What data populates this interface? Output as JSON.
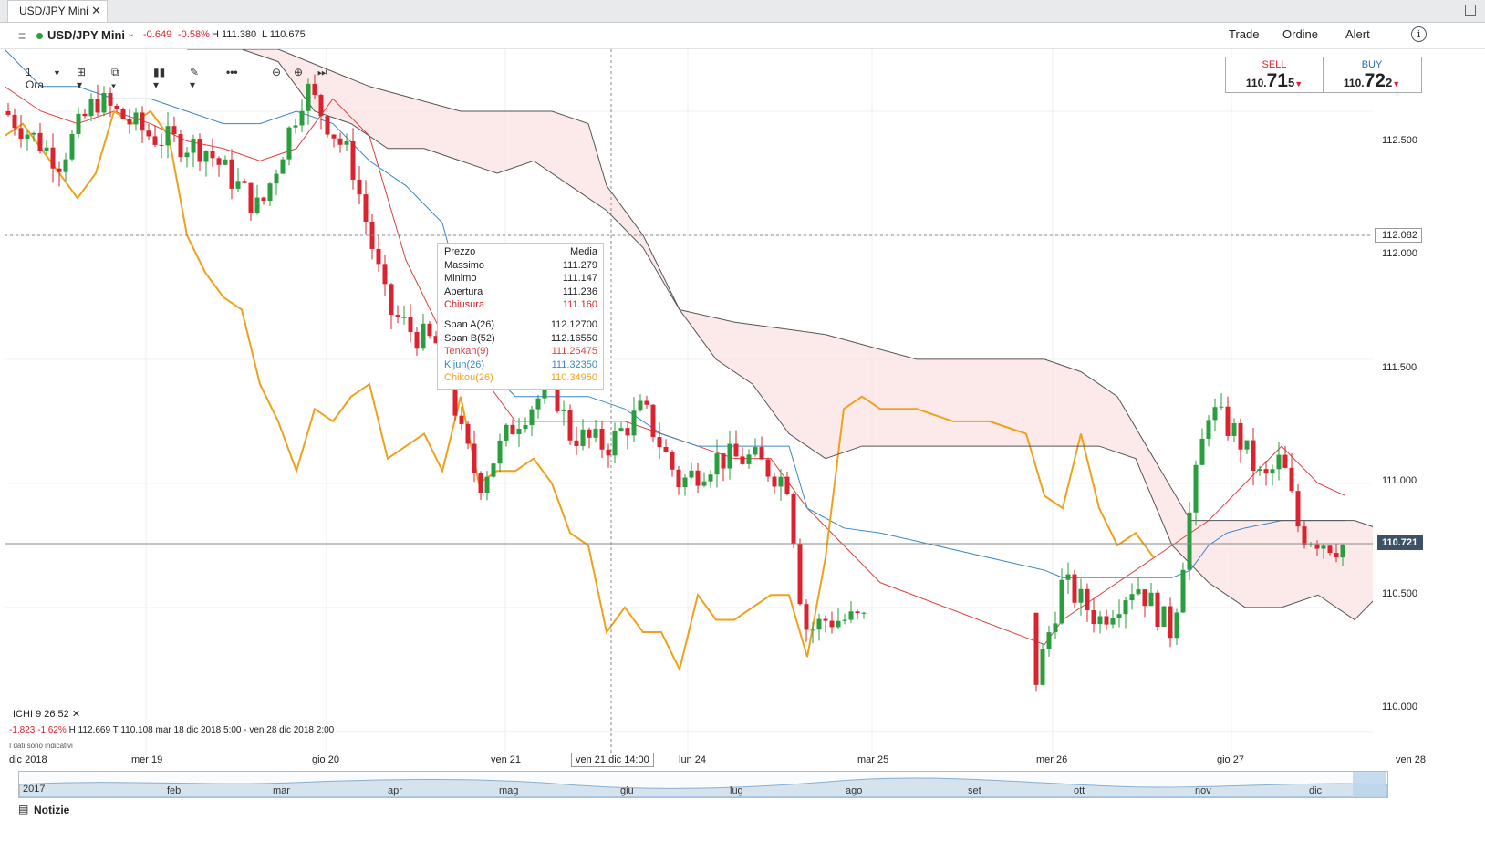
{
  "tab": {
    "title": "USD/JPY Mini",
    "close": "✕"
  },
  "header": {
    "symbol": "USD/JPY Mini",
    "change_abs": "-0.649",
    "change_pct": "-0.58%",
    "high": "H 111.380",
    "low": "L 110.675",
    "menu": [
      "Trade",
      "Ordine",
      "Alert"
    ],
    "info": "i",
    "up_color": "#2a9d3e",
    "down_color": "#d9232e"
  },
  "toolbar": {
    "timeframe": "1 Ora"
  },
  "trade": {
    "sell": {
      "label": "SELL",
      "prefix": "110.",
      "big": "71",
      "small": "5"
    },
    "buy": {
      "label": "BUY",
      "prefix": "110.",
      "big": "72",
      "small": "2"
    }
  },
  "y_axis": [
    "112.500",
    "112.000",
    "111.500",
    "111.000",
    "110.500",
    "110.000"
  ],
  "crosshair_price": "112.082",
  "last_price": "110.721",
  "x_axis": [
    "dic 2018",
    "mer 19",
    "gio 20",
    "ven 21",
    "lun 24",
    "mar 25",
    "mer 26",
    "gio 27",
    "ven 28"
  ],
  "crosshair_time": "ven 21 dic 14:00",
  "navigator": [
    "2017",
    "feb",
    "mar",
    "apr",
    "mag",
    "giu",
    "lug",
    "ago",
    "set",
    "ott",
    "nov",
    "dic"
  ],
  "indicator": {
    "name": "ICHI",
    "params": "9  26  52",
    "close": "✕",
    "chg_abs": "-1.823",
    "chg_pct": "-1.62%",
    "h": "H 112.669",
    "t": "T 110.108",
    "range": "mar 18 dic 2018 5:00 - ven 28 dic 2018 2:00",
    "note": "I dati sono indicativi"
  },
  "tooltip": {
    "header_left": "Prezzo",
    "header_right": "Media",
    "rows": [
      {
        "k": "Massimo",
        "v": "111.279"
      },
      {
        "k": "Minimo",
        "v": "111.147"
      },
      {
        "k": "Apertura",
        "v": "111.236"
      },
      {
        "k": "Chiusura",
        "v": "111.160"
      }
    ],
    "rows2": [
      {
        "k": "Span A(26)",
        "v": "112.12700"
      },
      {
        "k": "Span B(52)",
        "v": "112.16550"
      },
      {
        "k": "Tenkan(9)",
        "v": "111.25475"
      },
      {
        "k": "Kijun(26)",
        "v": "111.32350"
      },
      {
        "k": "Chikou(26)",
        "v": "110.34950"
      }
    ]
  },
  "footer": {
    "news": "Notizie"
  },
  "chart_data": {
    "type": "line",
    "y_range": [
      109.9,
      112.75
    ],
    "series": [
      {
        "name": "Tenkan(9)",
        "color": "#e0403f",
        "x": [
          0,
          40,
          80,
          120,
          160,
          200,
          240,
          280,
          320,
          360,
          400,
          440,
          480,
          520,
          560,
          600,
          640,
          680,
          720,
          760,
          800,
          840,
          880,
          920,
          960,
          1140,
          1160,
          1200,
          1240,
          1280,
          1320,
          1360,
          1400,
          1440,
          1470
        ],
        "y": [
          112.6,
          112.5,
          112.45,
          112.5,
          112.45,
          112.38,
          112.35,
          112.3,
          112.35,
          112.55,
          112.4,
          111.9,
          111.6,
          111.45,
          111.25,
          111.25,
          111.25,
          111.25,
          111.2,
          111.15,
          111.1,
          111.1,
          110.9,
          110.75,
          110.6,
          110.35,
          110.45,
          110.55,
          110.65,
          110.75,
          110.85,
          111.0,
          111.15,
          111.0,
          110.95
        ]
      },
      {
        "name": "Kijun(26)",
        "color": "#3a86c8",
        "x": [
          0,
          40,
          80,
          120,
          160,
          200,
          240,
          280,
          320,
          360,
          400,
          440,
          480,
          520,
          560,
          600,
          640,
          680,
          720,
          760,
          800,
          840,
          860,
          880,
          920,
          960,
          1140,
          1160,
          1240,
          1280,
          1300,
          1320,
          1340,
          1360,
          1400,
          1440,
          1470
        ],
        "y": [
          112.75,
          112.6,
          112.6,
          112.55,
          112.55,
          112.5,
          112.45,
          112.45,
          112.5,
          112.45,
          112.3,
          112.2,
          112.05,
          111.5,
          111.35,
          111.35,
          111.35,
          111.3,
          111.2,
          111.15,
          111.15,
          111.15,
          111.15,
          110.9,
          110.82,
          110.8,
          110.65,
          110.62,
          110.62,
          110.62,
          110.65,
          110.75,
          110.8,
          110.82,
          110.85,
          110.85,
          110.85
        ]
      },
      {
        "name": "Chikou(26)",
        "color": "#f0a11c",
        "x": [
          0,
          20,
          40,
          60,
          80,
          100,
          120,
          140,
          160,
          180,
          200,
          220,
          240,
          260,
          280,
          300,
          320,
          340,
          360,
          380,
          400,
          420,
          440,
          460,
          480,
          500,
          520,
          540,
          560,
          580,
          600,
          620,
          640,
          660,
          680,
          700,
          720,
          740,
          760,
          780,
          800,
          820,
          840,
          860,
          880,
          900,
          920,
          940,
          960,
          1000,
          1040,
          1080,
          1120,
          1140,
          1160,
          1180,
          1200,
          1220,
          1240,
          1260
        ],
        "y": [
          112.4,
          112.45,
          112.35,
          112.25,
          112.15,
          112.25,
          112.5,
          112.45,
          112.5,
          112.4,
          112.0,
          111.85,
          111.75,
          111.7,
          111.4,
          111.25,
          111.05,
          111.3,
          111.25,
          111.35,
          111.4,
          111.1,
          111.15,
          111.2,
          111.05,
          111.35,
          111.0,
          111.05,
          111.05,
          111.1,
          111.0,
          110.8,
          110.75,
          110.4,
          110.5,
          110.4,
          110.4,
          110.25,
          110.55,
          110.45,
          110.45,
          110.5,
          110.55,
          110.55,
          110.3,
          110.7,
          111.3,
          111.35,
          111.3,
          111.3,
          111.25,
          111.25,
          111.2,
          110.95,
          110.9,
          111.2,
          110.9,
          110.75,
          110.8,
          110.7
        ]
      },
      {
        "name": "Span A(26)",
        "color": "#555555",
        "x": [
          200,
          260,
          300,
          340,
          380,
          420,
          460,
          500,
          540,
          580,
          620,
          660,
          700,
          740,
          780,
          820,
          860,
          900,
          940,
          1000,
          1140,
          1200,
          1240,
          1280,
          1320,
          1360,
          1400,
          1440,
          1480,
          1520
        ],
        "y": [
          112.75,
          112.75,
          112.7,
          112.5,
          112.45,
          112.35,
          112.35,
          112.3,
          112.25,
          112.3,
          112.2,
          112.1,
          111.95,
          111.7,
          111.5,
          111.4,
          111.2,
          111.1,
          111.15,
          111.15,
          111.15,
          111.15,
          111.1,
          110.75,
          110.6,
          110.5,
          110.5,
          110.55,
          110.45,
          110.6
        ]
      },
      {
        "name": "Span B(52)",
        "color": "#555555",
        "x": [
          200,
          300,
          400,
          500,
          600,
          640,
          660,
          700,
          740,
          800,
          900,
          1000,
          1100,
          1140,
          1180,
          1220,
          1260,
          1300,
          1360,
          1400,
          1440,
          1480,
          1520
        ],
        "y": [
          112.75,
          112.75,
          112.6,
          112.5,
          112.5,
          112.45,
          112.2,
          112.0,
          111.7,
          111.65,
          111.6,
          111.5,
          111.5,
          111.5,
          111.45,
          111.35,
          111.1,
          110.85,
          110.85,
          110.85,
          110.85,
          110.85,
          110.8
        ]
      }
    ]
  }
}
